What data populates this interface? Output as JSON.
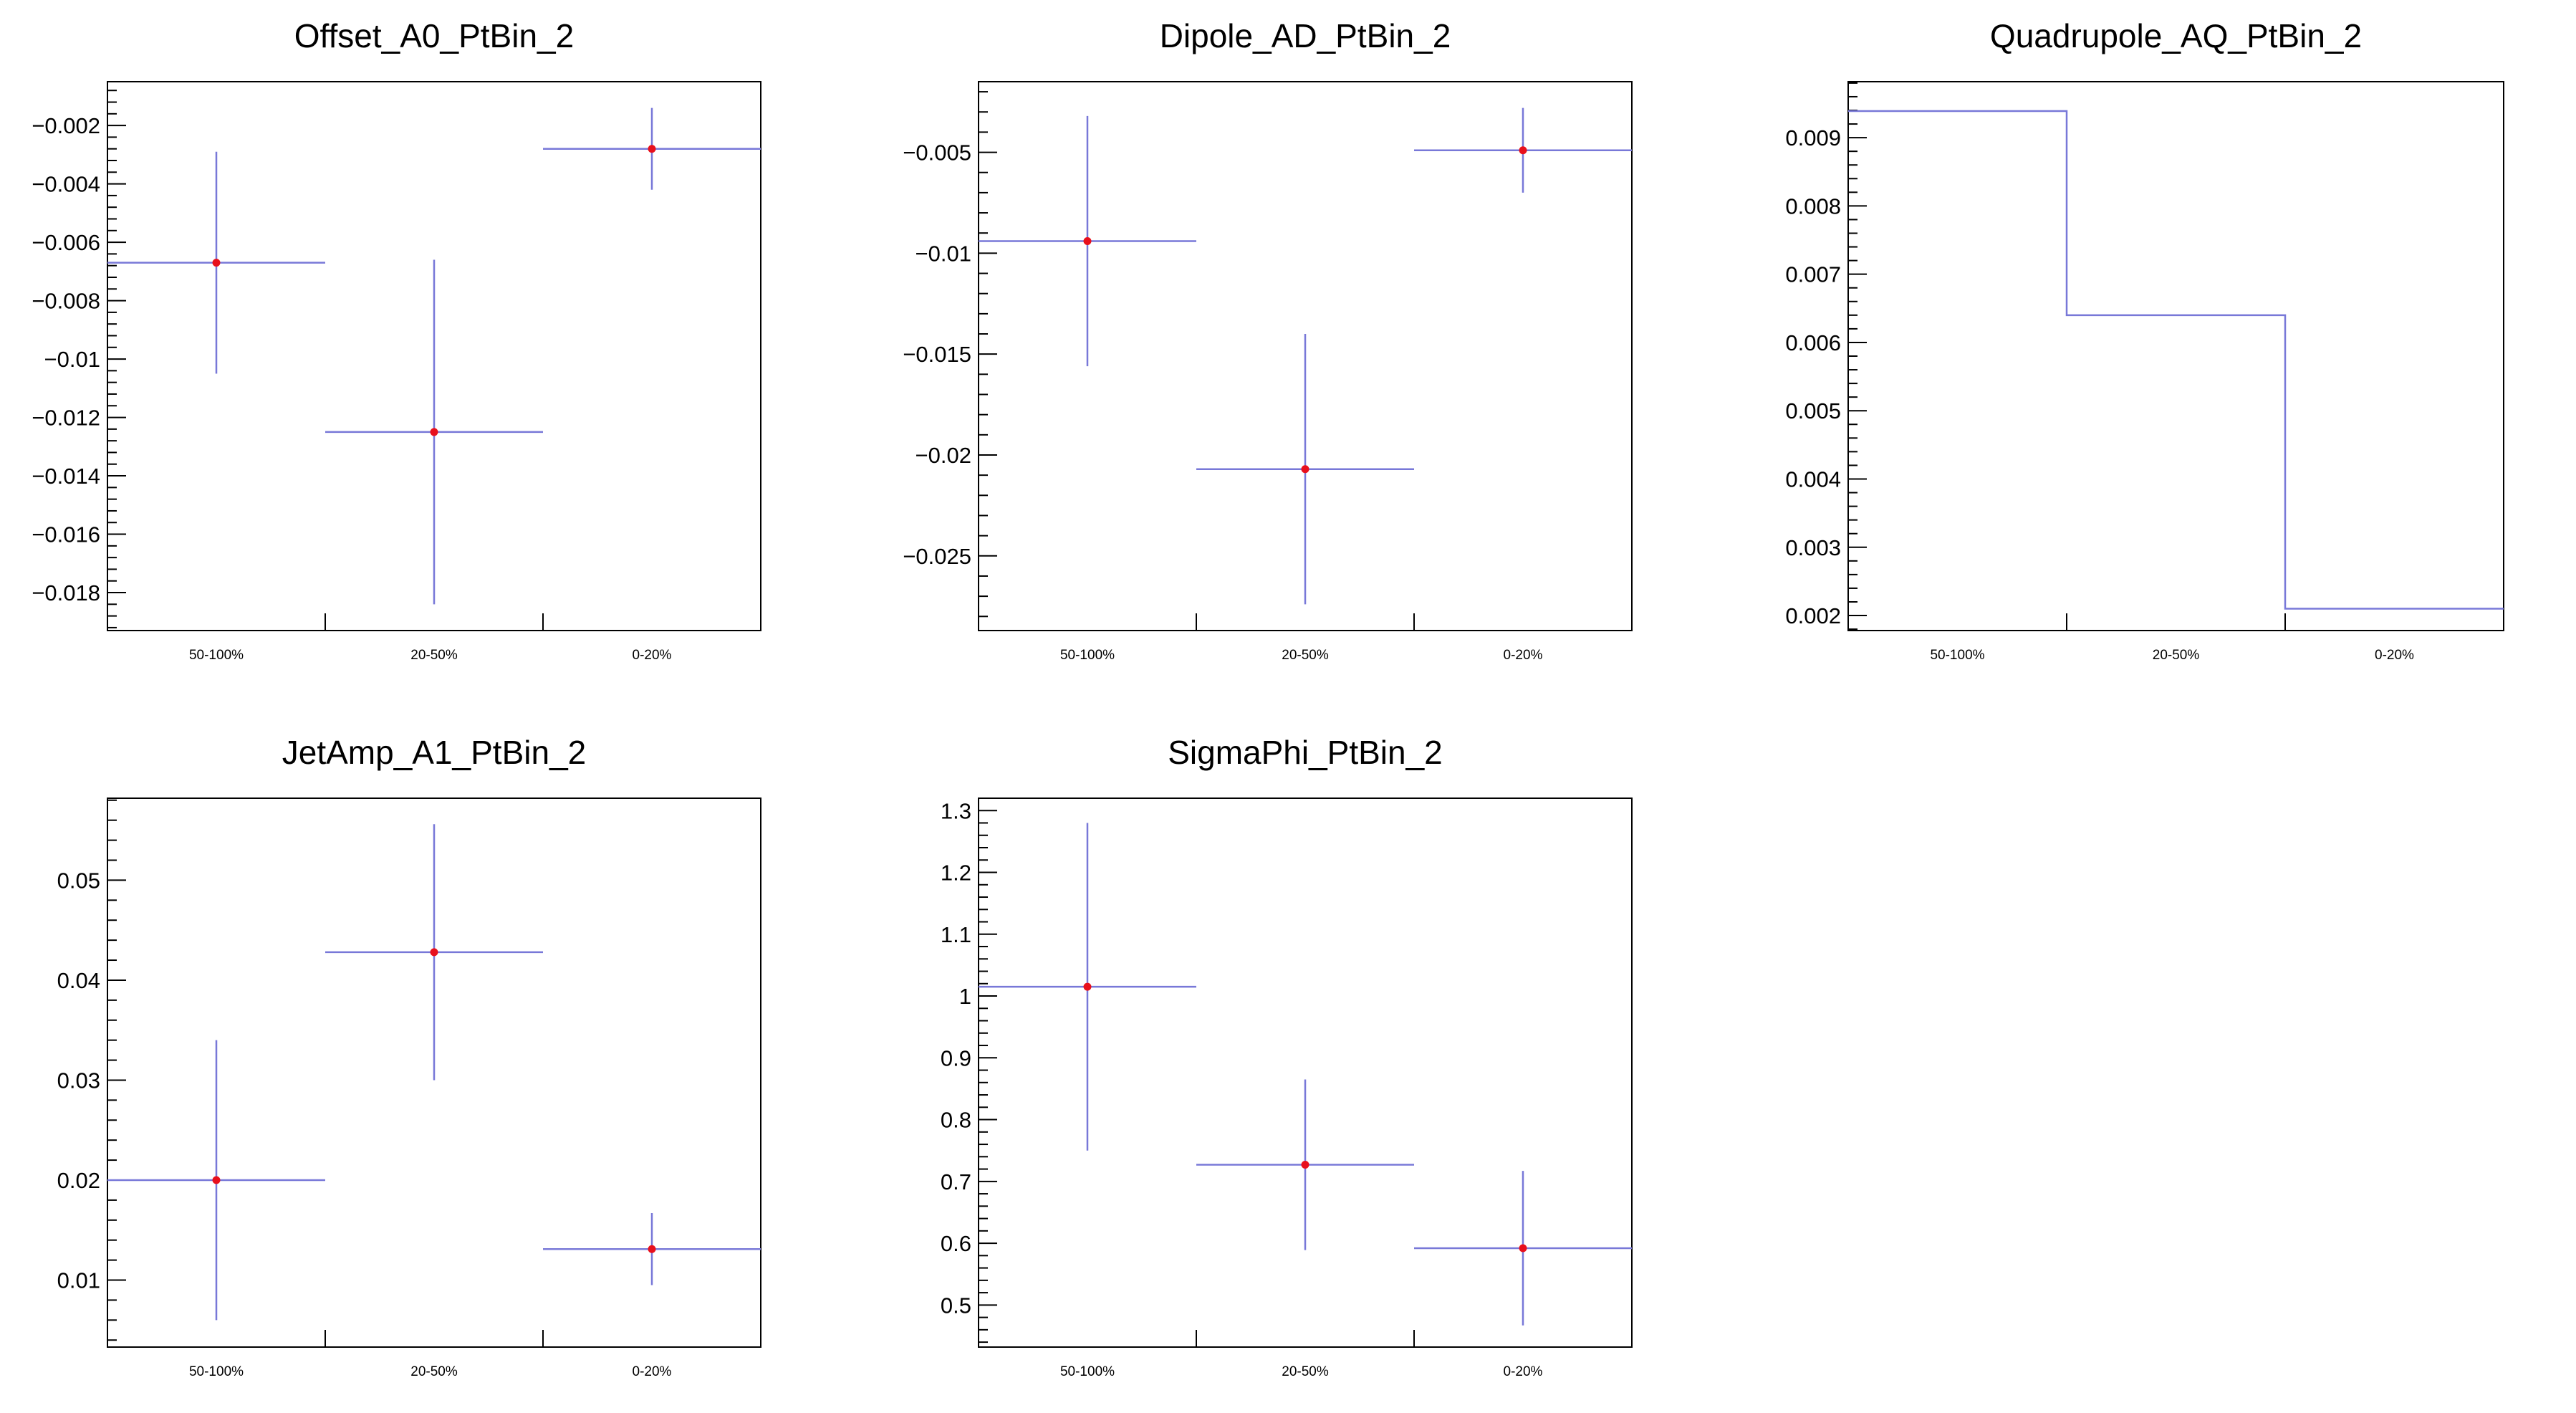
{
  "colors": {
    "series_line": "#7878d8",
    "marker": "#e8101c",
    "axis": "#000000",
    "background": "#ffffff"
  },
  "chart_data": [
    {
      "type": "scatter",
      "title": "Offset_A0_PtBin_2",
      "categories": [
        "50-100%",
        "20-50%",
        "0-20%"
      ],
      "values": [
        -0.0067,
        -0.0125,
        -0.0028
      ],
      "errors": [
        0.0038,
        0.0059,
        0.0014
      ],
      "ylim": [
        -0.0193,
        -0.0005
      ],
      "yticks": [
        -0.018,
        -0.016,
        -0.014,
        -0.012,
        -0.01,
        -0.008,
        -0.006,
        -0.004,
        -0.002
      ],
      "ytick_labels": [
        "−0.018",
        "−0.016",
        "−0.014",
        "−0.012",
        "−0.01",
        "−0.008",
        "−0.006",
        "−0.004",
        "−0.002"
      ],
      "markers": true
    },
    {
      "type": "scatter",
      "title": "Dipole_AD_PtBin_2",
      "categories": [
        "50-100%",
        "20-50%",
        "0-20%"
      ],
      "values": [
        -0.0094,
        -0.0207,
        -0.0049
      ],
      "errors": [
        0.0062,
        0.0067,
        0.0021
      ],
      "ylim": [
        -0.0287,
        -0.0015
      ],
      "yticks": [
        -0.025,
        -0.02,
        -0.015,
        -0.01,
        -0.005
      ],
      "ytick_labels": [
        "−0.025",
        "−0.02",
        "−0.015",
        "−0.01",
        "−0.005"
      ],
      "markers": true
    },
    {
      "type": "line",
      "title": "Quadrupole_AQ_PtBin_2",
      "categories": [
        "50-100%",
        "20-50%",
        "0-20%"
      ],
      "values": [
        0.00939,
        0.0064,
        0.0021
      ],
      "ylim": [
        0.00178,
        0.00982
      ],
      "yticks": [
        0.002,
        0.003,
        0.004,
        0.005,
        0.006,
        0.007,
        0.008,
        0.009
      ],
      "ytick_labels": [
        "0.002",
        "0.003",
        "0.004",
        "0.005",
        "0.006",
        "0.007",
        "0.008",
        "0.009"
      ],
      "markers": false
    },
    {
      "type": "scatter",
      "title": "JetAmp_A1_PtBin_2",
      "categories": [
        "50-100%",
        "20-50%",
        "0-20%"
      ],
      "values": [
        0.02,
        0.0428,
        0.0131
      ],
      "errors": [
        0.014,
        0.0128,
        0.0036
      ],
      "ylim": [
        0.0033,
        0.0582
      ],
      "yticks": [
        0.01,
        0.02,
        0.03,
        0.04,
        0.05
      ],
      "ytick_labels": [
        "0.01",
        "0.02",
        "0.03",
        "0.04",
        "0.05"
      ],
      "markers": true
    },
    {
      "type": "scatter",
      "title": "SigmaPhi_PtBin_2",
      "categories": [
        "50-100%",
        "20-50%",
        "0-20%"
      ],
      "values": [
        1.015,
        0.727,
        0.592
      ],
      "errors": [
        0.265,
        0.138,
        0.125
      ],
      "ylim": [
        0.432,
        1.32
      ],
      "yticks": [
        0.5,
        0.6,
        0.7,
        0.8,
        0.9,
        1,
        1.1,
        1.2,
        1.3
      ],
      "ytick_labels": [
        "0.5",
        "0.6",
        "0.7",
        "0.8",
        "0.9",
        "1",
        "1.1",
        "1.2",
        "1.3"
      ],
      "markers": true
    }
  ]
}
